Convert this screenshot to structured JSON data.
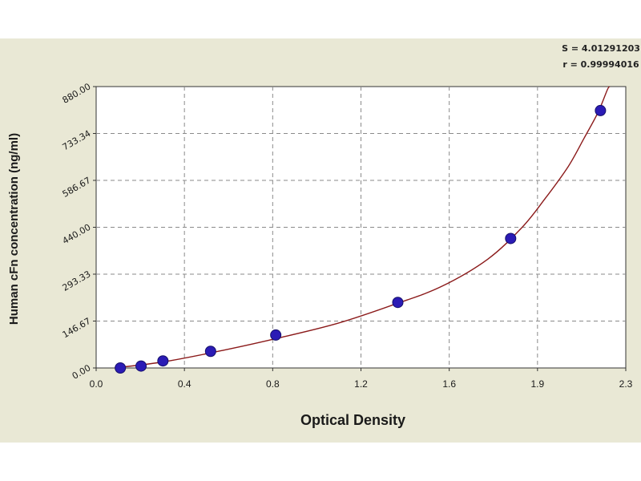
{
  "chart_data": {
    "type": "scatter",
    "xlabel": "Optical Density",
    "ylabel": "Human cFn concentration (ng/ml)",
    "x_ticks": [
      "0.0",
      "0.4",
      "0.8",
      "1.2",
      "1.6",
      "1.9",
      "2.3"
    ],
    "y_ticks": [
      "0.00",
      "146.67",
      "293.33",
      "440.00",
      "586.67",
      "733.34",
      "880.00"
    ],
    "xlim": [
      0.0,
      2.3
    ],
    "ylim": [
      0.0,
      880.0
    ],
    "grid": true,
    "annotations": [
      "S = 4.01291203",
      "r = 0.99994016"
    ],
    "points": [
      {
        "x": 0.105,
        "y": 0.0
      },
      {
        "x": 0.195,
        "y": 6.0
      },
      {
        "x": 0.29,
        "y": 22.0
      },
      {
        "x": 0.497,
        "y": 52.0
      },
      {
        "x": 0.78,
        "y": 103.0
      },
      {
        "x": 1.31,
        "y": 205.0
      },
      {
        "x": 1.8,
        "y": 405.0
      },
      {
        "x": 2.19,
        "y": 805.0
      }
    ],
    "curve": [
      {
        "x": 0.08,
        "y": 0.0
      },
      {
        "x": 0.3,
        "y": 20.0
      },
      {
        "x": 0.55,
        "y": 55.0
      },
      {
        "x": 0.8,
        "y": 95.0
      },
      {
        "x": 1.05,
        "y": 140.0
      },
      {
        "x": 1.3,
        "y": 200.0
      },
      {
        "x": 1.5,
        "y": 255.0
      },
      {
        "x": 1.7,
        "y": 340.0
      },
      {
        "x": 1.85,
        "y": 440.0
      },
      {
        "x": 1.95,
        "y": 530.0
      },
      {
        "x": 2.05,
        "y": 630.0
      },
      {
        "x": 2.12,
        "y": 720.0
      },
      {
        "x": 2.18,
        "y": 800.0
      },
      {
        "x": 2.22,
        "y": 870.0
      },
      {
        "x": 2.23,
        "y": 880.0
      }
    ],
    "colors": {
      "background": "#e9e8d5",
      "plot_area": "#ffffff",
      "grid": "#8a8a8a",
      "curve": "#8b1a1a",
      "marker": "#2b1bb5"
    }
  }
}
